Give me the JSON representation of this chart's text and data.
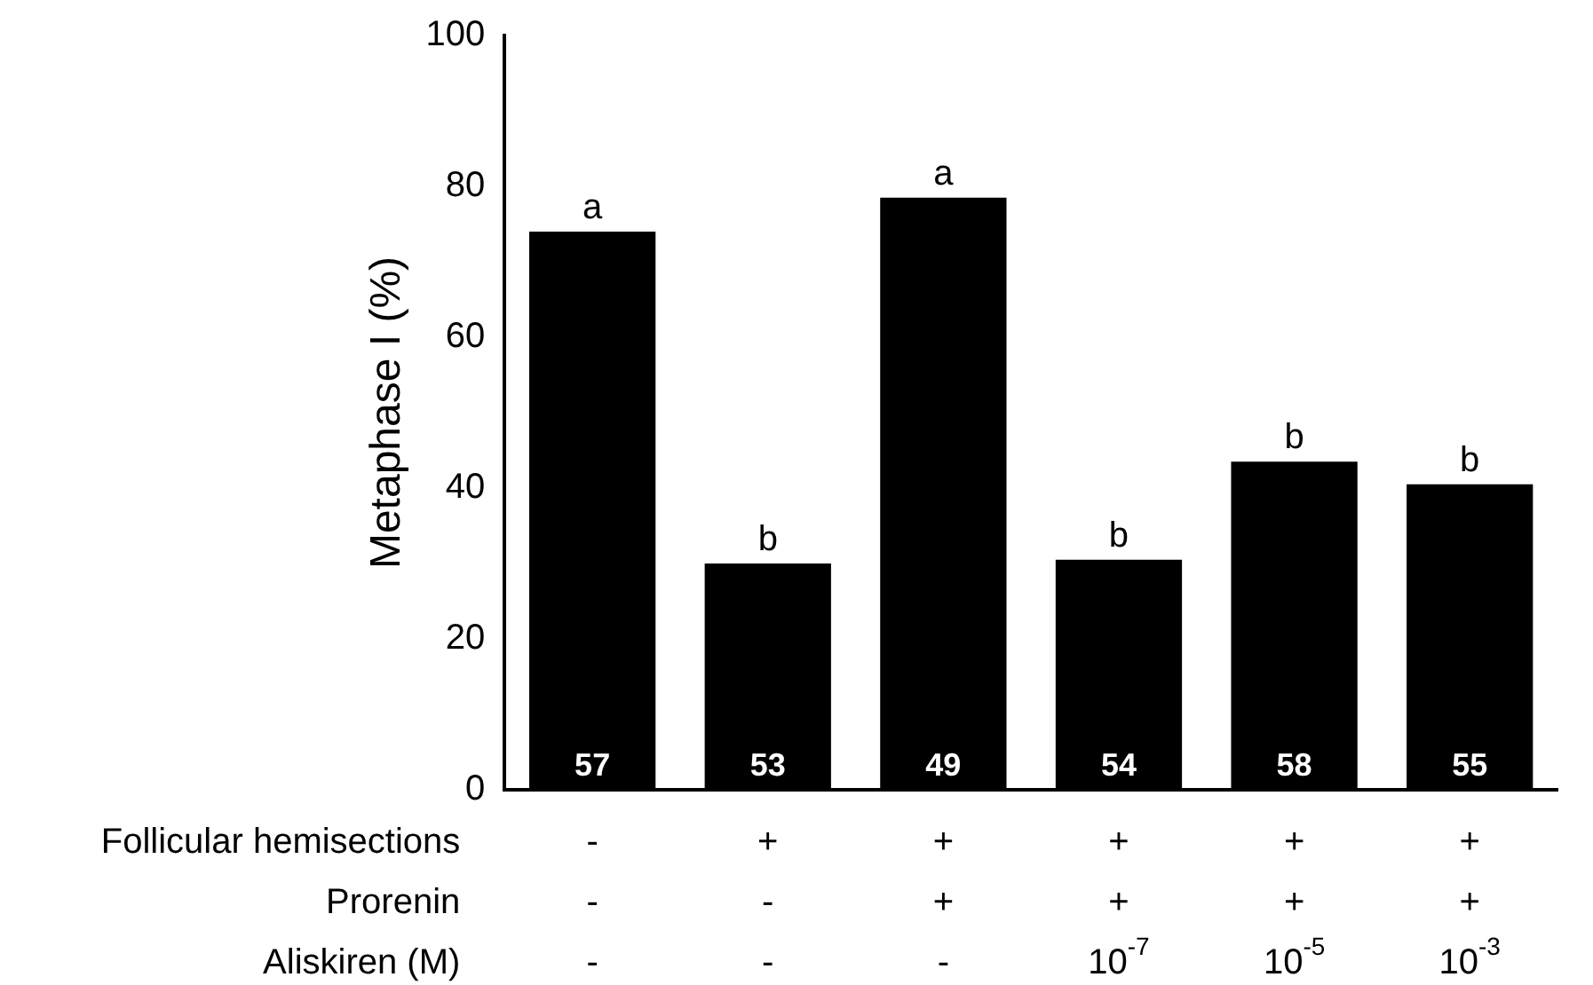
{
  "chart_data": {
    "type": "bar",
    "ylabel": "Metaphase I (%)",
    "categories": [
      "-\n-\n-",
      "+\n-\n-",
      "+\n+\n-",
      "+\n+\n10$^{-7}$",
      "+\n+\n10$^{-5}$",
      "+\n+\n10$^{-3}$"
    ],
    "values": [
      74,
      30,
      78.5,
      30.5,
      43.5,
      40.5
    ],
    "color": "#000000",
    "ylim": [
      0,
      100
    ],
    "yticks": [
      0,
      20,
      40,
      60,
      80,
      100
    ],
    "grid": false,
    "legend": false,
    "annotations": [
      "Follicular hemisections",
      "Prorenin",
      "Aliskiren (M)",
      {
        "text": "a",
        "x": "-\n-\n-",
        "y": 74
      },
      {
        "text": "b",
        "x": "+\n-\n-",
        "y": 30
      },
      {
        "text": "a",
        "x": "+\n+\n-",
        "y": 78.5
      },
      {
        "text": "b",
        "x": "+\n+\n10$^{-7}$",
        "y": 30.5
      },
      {
        "text": "b",
        "x": "+\n+\n10$^{-5}$",
        "y": 43.5
      },
      {
        "text": "b",
        "x": "+\n+\n10$^{-3}$",
        "y": 40.5
      },
      {
        "text": "57",
        "x": "-\n-\n-",
        "y": 0
      },
      {
        "text": "53",
        "x": "+\n-\n-",
        "y": 0
      },
      {
        "text": "49",
        "x": "+\n+\n-",
        "y": 0
      },
      {
        "text": "54",
        "x": "+\n+\n10$^{-7}$",
        "y": 0
      },
      {
        "text": "58",
        "x": "+\n+\n10$^{-5}$",
        "y": 0
      },
      {
        "text": "55",
        "x": "+\n+\n10$^{-3}$",
        "y": 0
      }
    ]
  }
}
